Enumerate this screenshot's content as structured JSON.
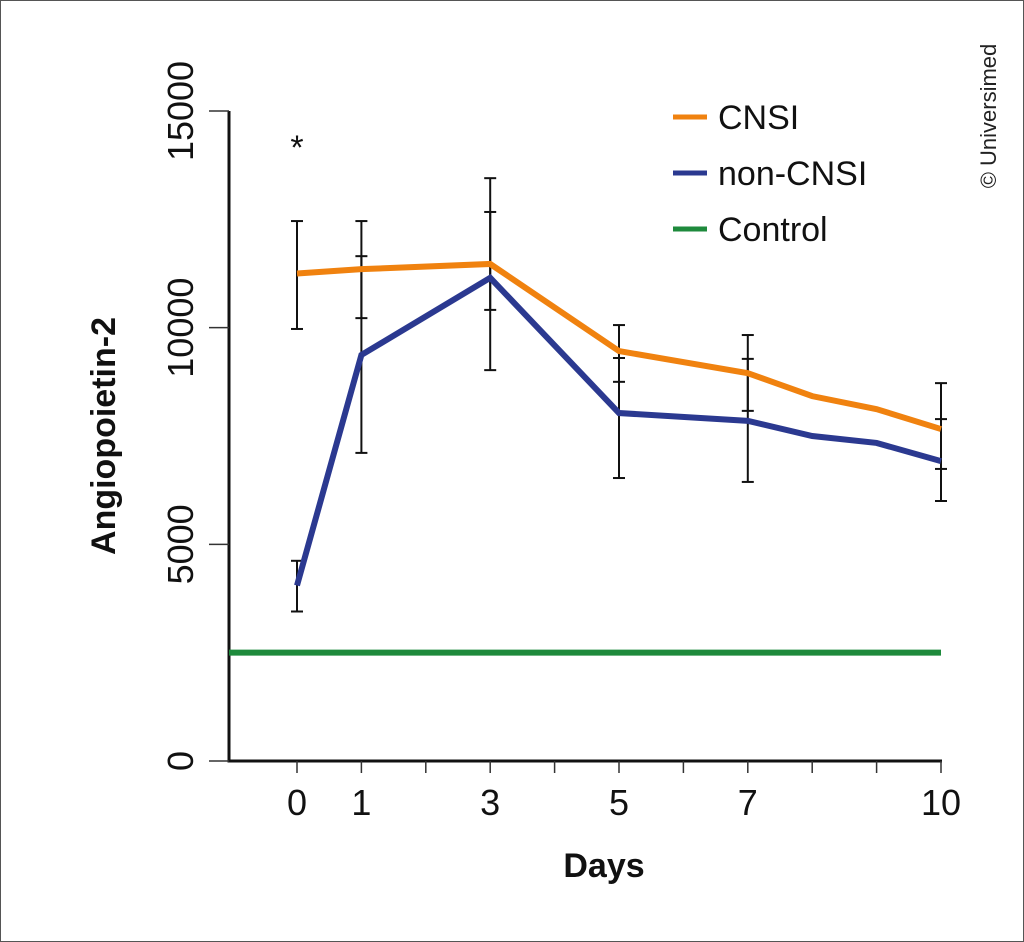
{
  "chart_data": {
    "type": "line",
    "title": "",
    "xlabel": "Days",
    "ylabel": "Angiopoietin-2",
    "ylim": [
      0,
      15000
    ],
    "xlim": [
      -1,
      10
    ],
    "yticks": [
      0,
      5000,
      10000,
      15000
    ],
    "xticks": [
      0,
      1,
      2,
      3,
      4,
      5,
      6,
      7,
      8,
      9,
      10
    ],
    "xtick_labels": [
      "0",
      "1",
      "",
      "3",
      "",
      "5",
      "",
      "7",
      "",
      "",
      "10"
    ],
    "grid": false,
    "legend_position": "top-right",
    "annotation": "*",
    "annotation_x": 0,
    "series": [
      {
        "name": "CNSI",
        "color": "#f0820f",
        "x": [
          0,
          1,
          3,
          5,
          7,
          8,
          9,
          10
        ],
        "values": [
          11250,
          11350,
          11470,
          9460,
          8950,
          8420,
          8120,
          7660
        ],
        "error_bars": [
          {
            "x": 0,
            "low": 9970,
            "high": 12460
          },
          {
            "x": 1,
            "low": 10220,
            "high": 12460
          },
          {
            "x": 3,
            "low": 10410,
            "high": 12670
          },
          {
            "x": 5,
            "low": 8750,
            "high": 10060
          },
          {
            "x": 7,
            "low": 8080,
            "high": 9830
          },
          {
            "x": 10,
            "low": 6740,
            "high": 8720
          }
        ]
      },
      {
        "name": "non-CNSI",
        "color": "#2b3990",
        "x": [
          0,
          1,
          3,
          5,
          7,
          8,
          9,
          10
        ],
        "values": [
          4050,
          9370,
          11150,
          8030,
          7850,
          7500,
          7340,
          6920
        ],
        "error_bars": [
          {
            "x": 0,
            "low": 3450,
            "high": 4620
          },
          {
            "x": 1,
            "low": 7110,
            "high": 11650
          },
          {
            "x": 3,
            "low": 9020,
            "high": 13450
          },
          {
            "x": 5,
            "low": 6530,
            "high": 9300
          },
          {
            "x": 7,
            "low": 6440,
            "high": 9280
          },
          {
            "x": 10,
            "low": 6000,
            "high": 7890
          }
        ]
      },
      {
        "name": "Control",
        "color": "#1e8a3c",
        "x": [
          -1,
          10
        ],
        "values": [
          2500,
          2500
        ]
      }
    ]
  },
  "copyright": "© Universimed"
}
